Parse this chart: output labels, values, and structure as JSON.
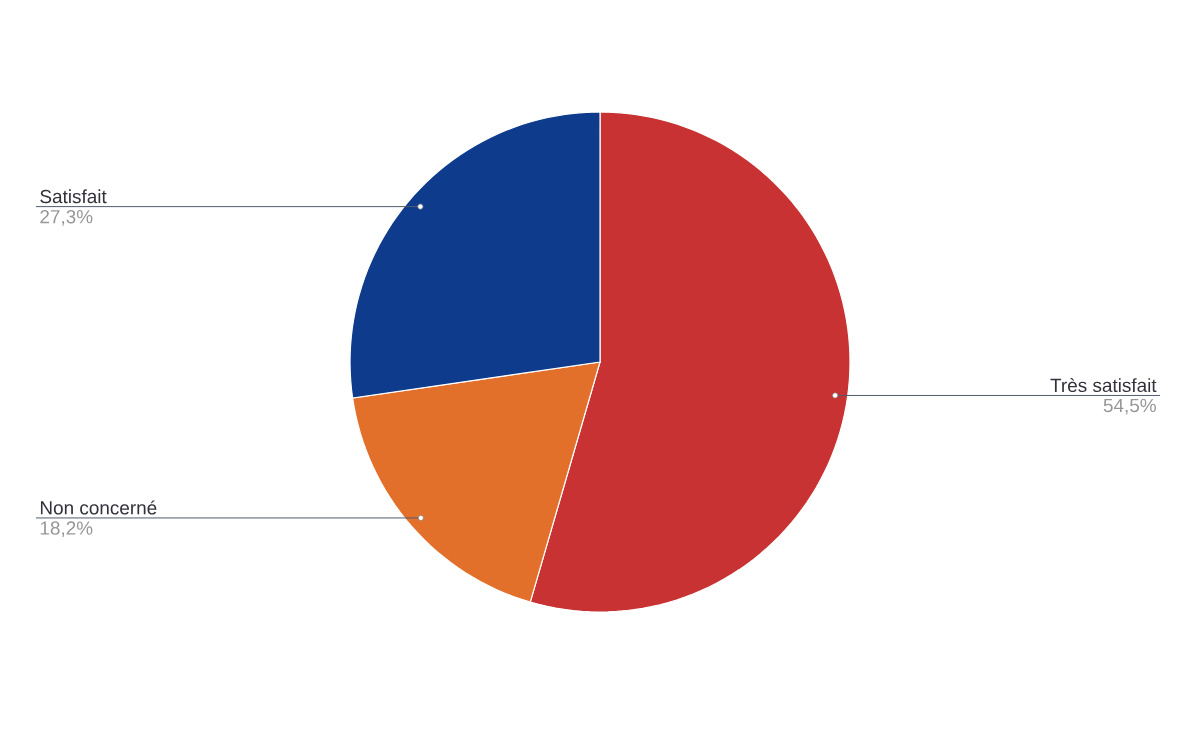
{
  "chart_data": {
    "type": "pie",
    "categories": [
      "Très satisfait",
      "Non concerné",
      "Satisfait"
    ],
    "values": [
      54.5,
      18.2,
      27.3
    ],
    "value_labels": [
      "54,5%",
      "18,2%",
      "27,3%"
    ],
    "colors": [
      "#c93233",
      "#e3702a",
      "#0e3b8c"
    ]
  }
}
